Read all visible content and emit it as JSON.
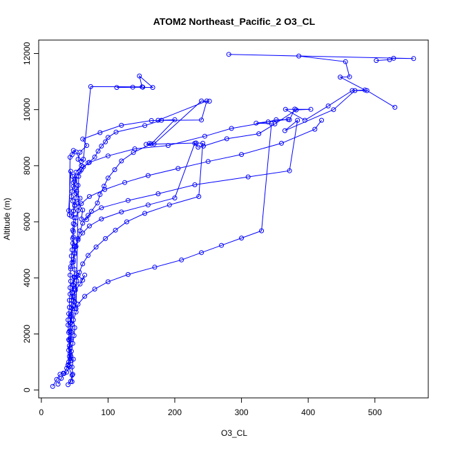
{
  "chart_data": {
    "type": "line",
    "title": "ATOM2 Northeast_Pacific_2 O3_CL",
    "xlabel": "O3_CL",
    "ylabel": "Altitude (m)",
    "xlim": [
      -4,
      580
    ],
    "ylim": [
      -280,
      12480
    ],
    "xticks": [
      0,
      100,
      200,
      300,
      400,
      500
    ],
    "yticks": [
      0,
      2000,
      4000,
      6000,
      8000,
      10000,
      12000
    ],
    "series_color": "#0000ff",
    "markers": "open-circle",
    "series": [
      {
        "x": [
          40,
          44,
          46,
          40,
          43,
          41,
          42,
          41,
          40,
          40,
          41,
          42,
          42,
          43,
          43,
          44,
          43,
          44,
          46,
          45,
          46,
          47,
          48,
          47,
          48,
          49,
          48,
          50,
          52,
          53,
          55,
          50,
          52,
          60,
          55,
          58,
          68,
          62,
          88,
          120,
          165,
          240,
          248,
          175
        ],
        "y": [
          190,
          310,
          530,
          870,
          1120,
          1420,
          1760,
          2050,
          2320,
          2500,
          2720,
          2950,
          3200,
          3420,
          3650,
          3880,
          4100,
          4320,
          4550,
          4780,
          5000,
          5230,
          5460,
          5700,
          5930,
          6150,
          6380,
          6600,
          6850,
          7080,
          7300,
          7530,
          7770,
          8000,
          8230,
          8480,
          8720,
          8950,
          9180,
          9440,
          9610,
          9630,
          10310,
          9620
        ]
      },
      {
        "x": [
          17,
          23,
          28,
          33,
          38,
          42,
          44,
          43,
          42,
          43,
          44,
          43,
          44,
          45,
          45,
          46,
          47,
          49,
          50,
          48,
          50,
          52,
          55,
          58,
          62,
          70,
          90,
          130,
          175,
          230,
          310,
          372,
          384,
          365,
          438,
          470,
          488,
          530
        ],
        "y": [
          130,
          380,
          560,
          600,
          640,
          840,
          1040,
          1300,
          1580,
          1840,
          2100,
          2380,
          2650,
          2930,
          3200,
          3480,
          3750,
          4030,
          4300,
          4570,
          4850,
          5120,
          5400,
          5680,
          5950,
          6230,
          6500,
          6760,
          7000,
          7320,
          7600,
          7820,
          9620,
          9250,
          10000,
          10680,
          10680,
          10080
        ]
      },
      {
        "x": [
          25,
          30,
          34,
          38,
          41,
          44,
          43,
          44,
          45,
          46,
          45,
          47,
          48,
          46,
          48,
          50,
          52,
          55,
          62,
          65,
          58,
          51,
          49,
          50,
          52,
          56,
          60,
          70,
          100,
          140,
          190,
          245,
          285,
          340,
          352,
          372,
          380
        ],
        "y": [
          210,
          420,
          590,
          780,
          1000,
          1220,
          1500,
          1780,
          2060,
          2340,
          2620,
          2900,
          3180,
          3460,
          3740,
          4020,
          4110,
          4090,
          3920,
          4100,
          3780,
          3560,
          3360,
          3150,
          2900,
          7620,
          7860,
          8100,
          8350,
          8600,
          8720,
          9050,
          9330,
          9560,
          9640,
          9640,
          10020
        ]
      },
      {
        "x": [
          44,
          48,
          50,
          49,
          47,
          48,
          50,
          52,
          55,
          60,
          72,
          95,
          125,
          160,
          205,
          250,
          300,
          360,
          410,
          420
        ],
        "y": [
          4400,
          4650,
          4900,
          5150,
          5400,
          5650,
          5900,
          6150,
          6400,
          6650,
          6900,
          7150,
          7400,
          7650,
          7900,
          8150,
          8400,
          8800,
          9300,
          9620
        ]
      },
      {
        "x": [
          50,
          55,
          62,
          72,
          90,
          120,
          160,
          200,
          230,
          235,
          243,
          278,
          326,
          350,
          382,
          404,
          366,
          395,
          430,
          466,
          485,
          448,
          462,
          456,
          386,
          281,
          558,
          528,
          522,
          502
        ],
        "y": [
          5100,
          5350,
          5600,
          5850,
          6100,
          6350,
          6600,
          6850,
          8800,
          8660,
          8700,
          8960,
          9140,
          9490,
          9990,
          10010,
          10010,
          9620,
          10130,
          10680,
          10700,
          11160,
          11170,
          11710,
          11910,
          11970,
          11820,
          11830,
          11780,
          11750
        ]
      },
      {
        "x": [
          45,
          48,
          50,
          47,
          45,
          46,
          48,
          50,
          53,
          58,
          63,
          72,
          80,
          85,
          90,
          96,
          100,
          112,
          155,
          180,
          200,
          165,
          138,
          120,
          110,
          100,
          94,
          88,
          84,
          75,
          68,
          60,
          62,
          55,
          58,
          52,
          50,
          48,
          47,
          44,
          41,
          42,
          43,
          46,
          48,
          52,
          60,
          63,
          74,
          151,
          147,
          167,
          137,
          152,
          113
        ],
        "y": [
          6200,
          6380,
          6560,
          6740,
          6900,
          7080,
          7260,
          7450,
          7630,
          7800,
          7960,
          8120,
          8310,
          8520,
          8700,
          8850,
          9010,
          9200,
          9430,
          9620,
          9640,
          8780,
          8470,
          8170,
          7860,
          7560,
          7270,
          6970,
          6670,
          6370,
          6080,
          6100,
          6420,
          6660,
          6840,
          7020,
          7200,
          7400,
          7620,
          7800,
          6400,
          6250,
          8300,
          8390,
          8540,
          8490,
          8160,
          8230,
          10820,
          10810,
          11200,
          10790,
          10800,
          10800,
          10790
        ]
      },
      {
        "x": [
          46,
          47,
          46,
          48,
          45,
          47,
          49,
          50,
          48,
          52,
          55,
          65,
          80,
          100,
          130,
          170,
          210,
          240,
          270,
          300,
          330,
          345,
          322,
          370
        ],
        "y": [
          300,
          560,
          820,
          1100,
          1380,
          1660,
          1940,
          2220,
          2500,
          2780,
          3060,
          3340,
          3600,
          3860,
          4120,
          4380,
          4640,
          4900,
          5160,
          5420,
          5680,
          9500,
          9520,
          9650
        ]
      },
      {
        "x": [
          40,
          42,
          43,
          41,
          42,
          44,
          45,
          47,
          49,
          51,
          53,
          57,
          62,
          70,
          82,
          96,
          111,
          128,
          155,
          192,
          236,
          242,
          232,
          157,
          162,
          169,
          240,
          252
        ],
        "y": [
          900,
          1200,
          1500,
          1800,
          2100,
          2400,
          2700,
          3000,
          3300,
          3600,
          3900,
          4200,
          4500,
          4800,
          5100,
          5400,
          5700,
          6000,
          6300,
          6600,
          6900,
          8800,
          8810,
          8760,
          8790,
          8780,
          10310,
          10300
        ]
      }
    ]
  }
}
